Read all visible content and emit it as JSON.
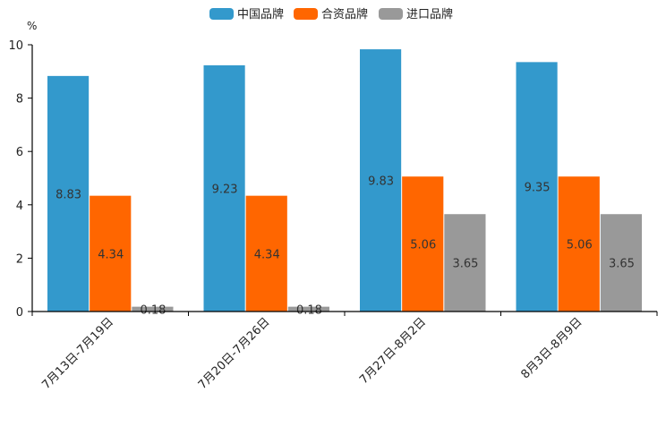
{
  "chart_data": {
    "type": "bar",
    "title": "",
    "xlabel": "",
    "ylabel": "%",
    "ylim": [
      0,
      10
    ],
    "yticks": [
      "0",
      "2",
      "4",
      "6",
      "8",
      "10"
    ],
    "grid": false,
    "legend": "top-center",
    "categories": [
      "7月13日-7月19日",
      "7月20日-7月26日",
      "7月27日-8月2日",
      "8月3日-8月9日"
    ],
    "series": [
      {
        "name": "中国品牌",
        "color": "#3399cc",
        "values": [
          8.83,
          9.23,
          9.83,
          9.35
        ],
        "labels": [
          "8.83",
          "9.23",
          "9.83",
          "9.35"
        ]
      },
      {
        "name": "合资品牌",
        "color": "#ff6600",
        "values": [
          4.34,
          4.34,
          5.06,
          5.06
        ],
        "labels": [
          "4.34",
          "4.34",
          "5.06",
          "5.06"
        ]
      },
      {
        "name": "进口品牌",
        "color": "#999999",
        "values": [
          0.18,
          0.18,
          3.65,
          3.65
        ],
        "labels": [
          "0.18",
          "0.18",
          "3.65",
          "3.65"
        ]
      }
    ]
  }
}
